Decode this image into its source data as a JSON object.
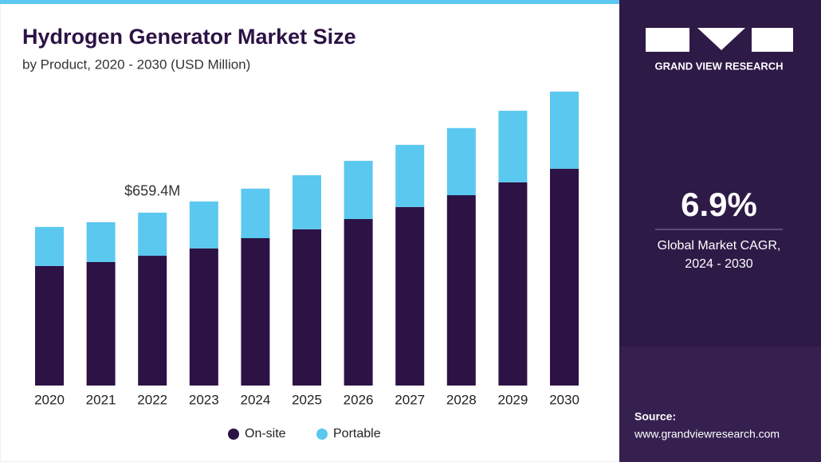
{
  "chart_data": {
    "type": "stacked_bar",
    "title": "Hydrogen Generator Market Size",
    "subtitle": "by Product, 2020 - 2030 (USD Million)",
    "annotation": "$659.4M",
    "categories": [
      "2020",
      "2021",
      "2022",
      "2023",
      "2024",
      "2025",
      "2026",
      "2027",
      "2028",
      "2029",
      "2030"
    ],
    "series": [
      {
        "name": "On-site",
        "color": "#2c1245",
        "values": [
          456,
          471,
          495,
          523,
          562,
          596,
          635,
          681,
          726,
          775,
          827
        ]
      },
      {
        "name": "Portable",
        "color": "#5bc8f0",
        "values": [
          149,
          152,
          164.4,
          179,
          189,
          206,
          222,
          237,
          256,
          273,
          294
        ]
      }
    ]
  },
  "sidebar": {
    "brand": "GRAND VIEW RESEARCH",
    "stat": "6.9%",
    "stat_label": [
      "Global Market CAGR,",
      "2024 - 2030"
    ],
    "source_label": "Source:",
    "source_url": "www.grandviewresearch.com"
  }
}
